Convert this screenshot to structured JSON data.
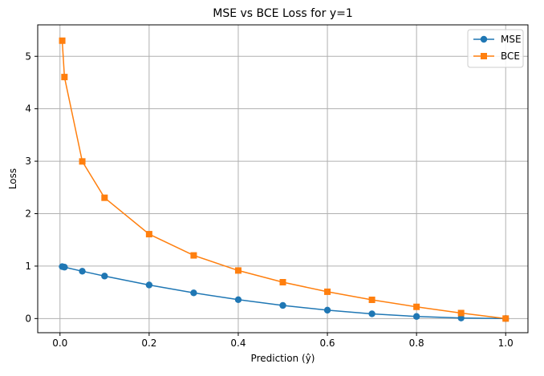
{
  "chart_data": {
    "type": "line",
    "title": "MSE vs BCE Loss for y=1",
    "xlabel": "Prediction (ŷ)",
    "ylabel": "Loss",
    "xlim": [
      -0.05,
      1.05
    ],
    "ylim": [
      -0.27,
      5.6
    ],
    "xticks": [
      0.0,
      0.2,
      0.4,
      0.6,
      0.8,
      1.0
    ],
    "xtick_labels": [
      "0.0",
      "0.2",
      "0.4",
      "0.6",
      "0.8",
      "1.0"
    ],
    "yticks": [
      0,
      1,
      2,
      3,
      4,
      5
    ],
    "ytick_labels": [
      "0",
      "1",
      "2",
      "3",
      "4",
      "5"
    ],
    "grid": true,
    "legend_position": "top-right",
    "x": [
      0.005,
      0.01,
      0.05,
      0.1,
      0.2,
      0.3,
      0.4,
      0.5,
      0.6,
      0.7,
      0.8,
      0.9,
      1.0
    ],
    "series": [
      {
        "name": "MSE",
        "color": "#1f77b4",
        "marker": "circle",
        "values": [
          0.99,
          0.98,
          0.9025,
          0.81,
          0.64,
          0.49,
          0.36,
          0.25,
          0.16,
          0.09,
          0.04,
          0.01,
          0.0
        ]
      },
      {
        "name": "BCE",
        "color": "#ff7f0e",
        "marker": "square",
        "values": [
          5.298,
          4.605,
          2.996,
          2.303,
          1.609,
          1.204,
          0.916,
          0.693,
          0.511,
          0.357,
          0.223,
          0.105,
          0.0
        ]
      }
    ]
  }
}
